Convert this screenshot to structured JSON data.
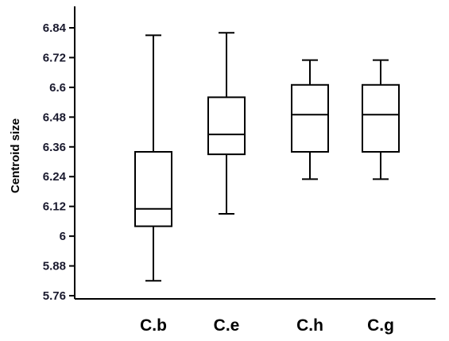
{
  "chart_data": {
    "type": "boxplot",
    "title": "",
    "xlabel": "",
    "ylabel": "Centroid size",
    "ylim": [
      5.74,
      6.9
    ],
    "yticks": [
      "5.76",
      "5.88",
      "6",
      "6.12",
      "6.24",
      "6.36",
      "6.48",
      "6.6",
      "6.72",
      "6.84"
    ],
    "categories": [
      "C.b",
      "C.e",
      "C.h",
      "C.g"
    ],
    "boxes": [
      {
        "category": "C.b",
        "min": 5.82,
        "q1": 6.04,
        "median": 6.11,
        "q3": 6.34,
        "max": 6.81
      },
      {
        "category": "C.e",
        "min": 6.09,
        "q1": 6.33,
        "median": 6.41,
        "q3": 6.56,
        "max": 6.82
      },
      {
        "category": "C.h",
        "min": 6.23,
        "q1": 6.34,
        "median": 6.49,
        "q3": 6.61,
        "max": 6.71
      },
      {
        "category": "C.g",
        "min": 6.23,
        "q1": 6.34,
        "median": 6.49,
        "q3": 6.61,
        "max": 6.71
      }
    ],
    "grid": false,
    "legend": "none"
  }
}
